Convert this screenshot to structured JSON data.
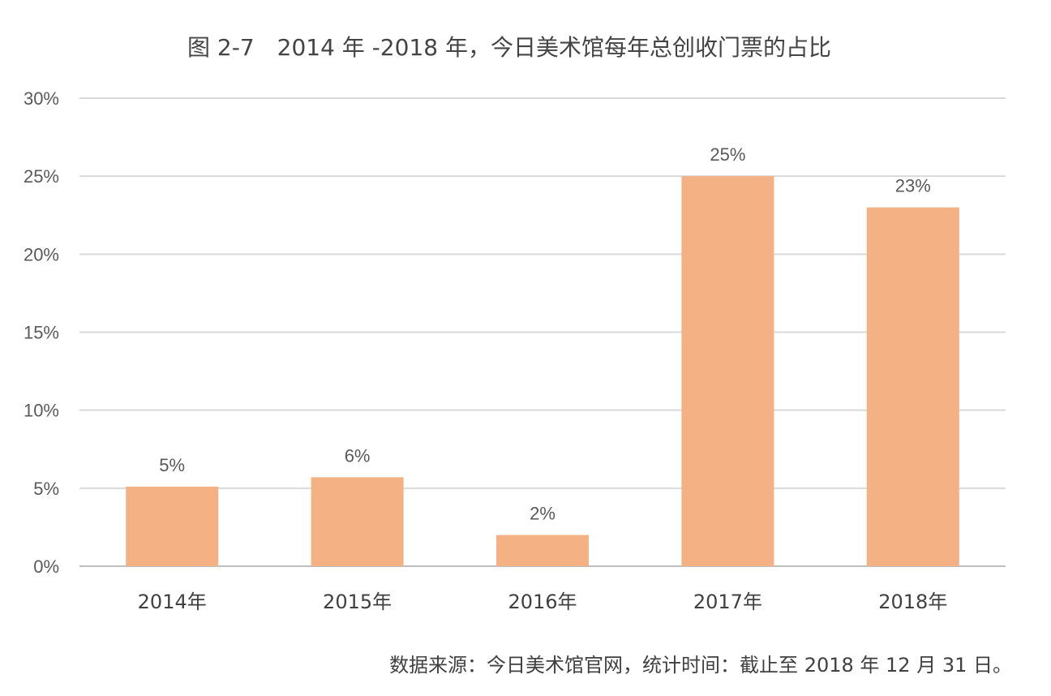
{
  "chart_data": {
    "type": "bar",
    "title": "图 2-7　2014 年 -2018 年，今日美术馆每年总创收门票的占比",
    "categories": [
      "2014年",
      "2015年",
      "2016年",
      "2017年",
      "2018年"
    ],
    "values": [
      5.1,
      5.7,
      2.0,
      25.0,
      23.0
    ],
    "data_labels": [
      "5%",
      "6%",
      "2%",
      "25%",
      "23%"
    ],
    "y_ticks": [
      0,
      5,
      10,
      15,
      20,
      25,
      30
    ],
    "y_tick_labels": [
      "0%",
      "5%",
      "10%",
      "15%",
      "20%",
      "25%",
      "30%"
    ],
    "ylim": [
      0,
      30
    ],
    "xlabel": "",
    "ylabel": "",
    "grid": true,
    "legend": "none",
    "bar_color": "#F4B183"
  },
  "source_note": "数据来源：今日美术馆官网，统计时间：截止至 2018 年 12 月 31 日。"
}
